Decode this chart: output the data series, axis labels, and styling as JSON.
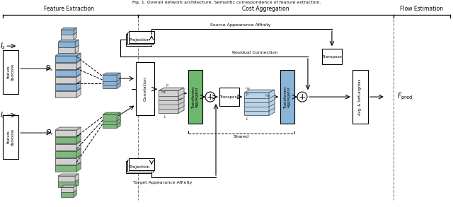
{
  "sections": [
    "Feature Extraction",
    "Cost Aggregation",
    "Flow Estimation"
  ],
  "section_dividers": [
    0.305,
    0.87
  ],
  "bg_color": "#ffffff",
  "figsize": [
    6.4,
    2.93
  ],
  "dpi": 100,
  "blue_fc": "#8ab4d8",
  "blue_fc2": "#b8d4ea",
  "gray_fc": "#d0d0d0",
  "green_fc": "#7db87d",
  "green_fc2": "#a8d0a8",
  "ta1_color": "#6db86d",
  "ta2_color": "#8ab4d8"
}
